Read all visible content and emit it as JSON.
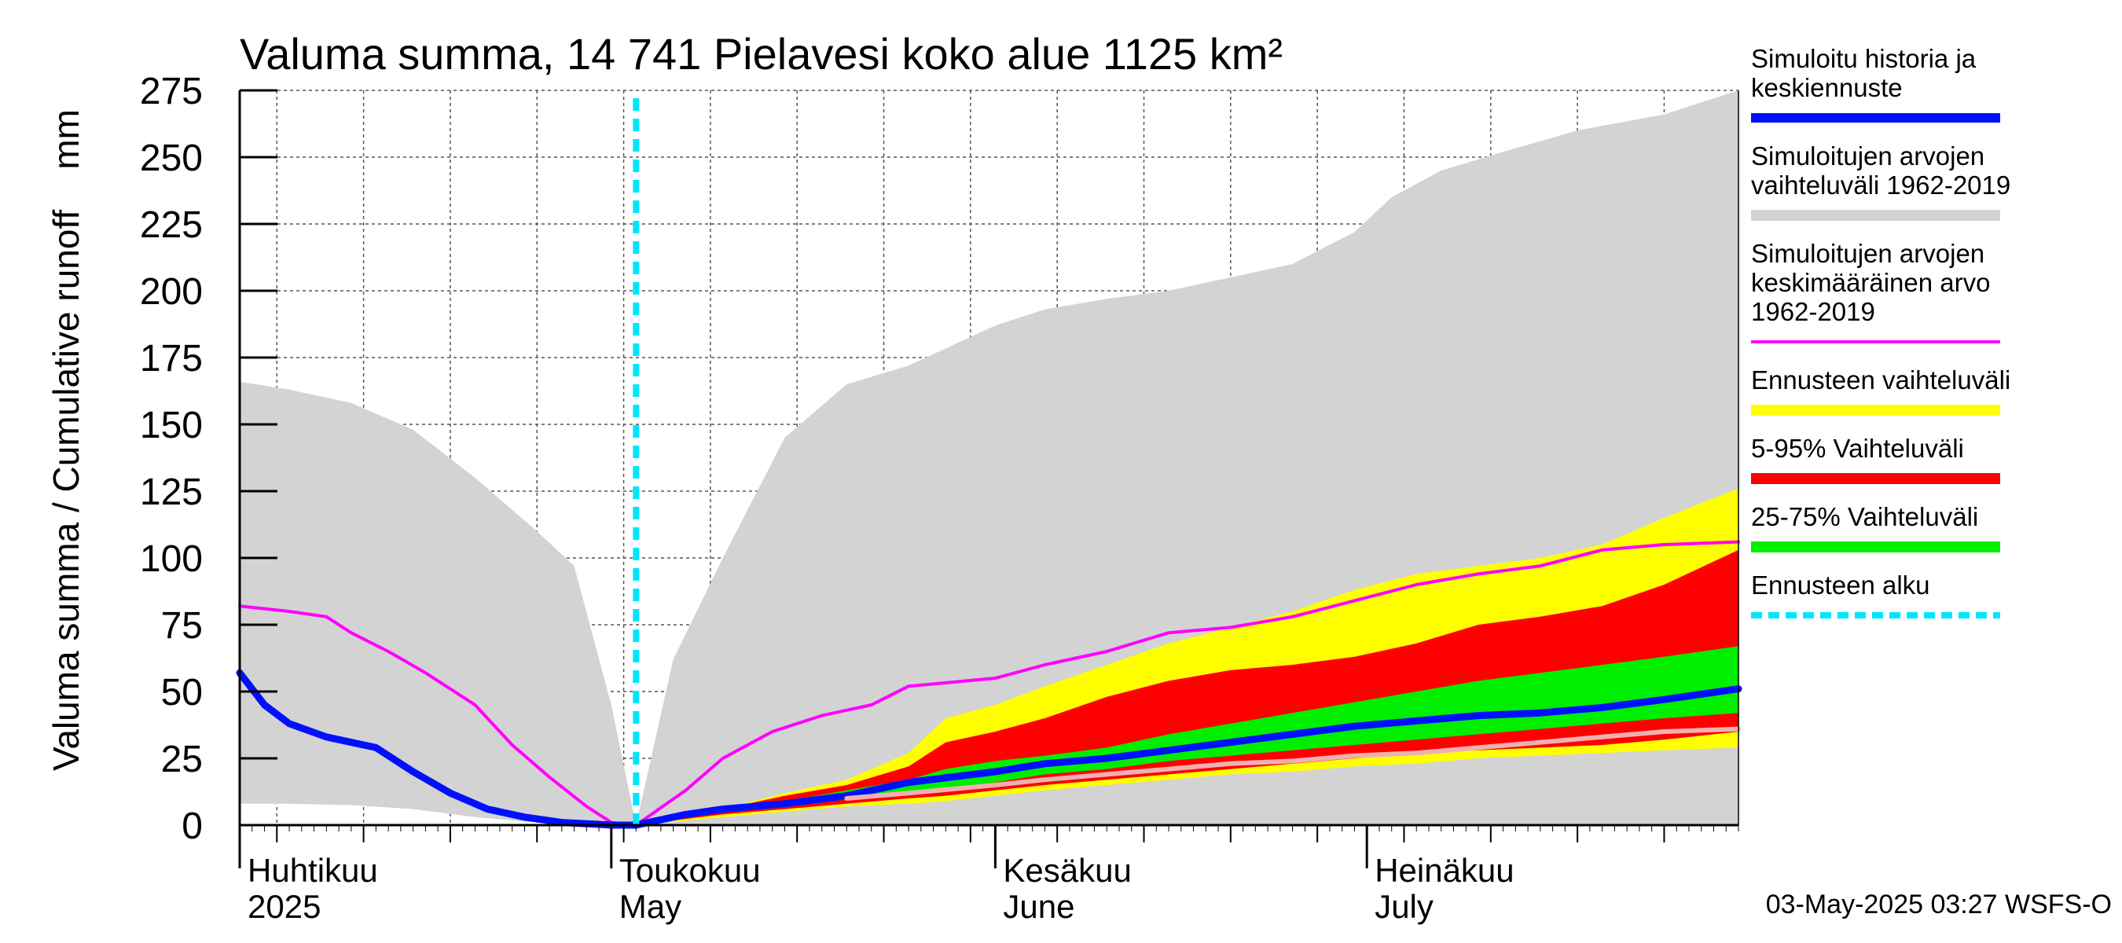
{
  "chart_data": {
    "type": "area",
    "title": "Valuma summa, 14 741 Pielavesi koko alue 1125 km²",
    "ylabel": "Valuma summa / Cumulative runoff    mm",
    "ylim": [
      0,
      275
    ],
    "yticks": [
      0,
      25,
      50,
      75,
      100,
      125,
      150,
      175,
      200,
      225,
      250,
      275
    ],
    "xlim": [
      "2025-04-01",
      "2025-07-31"
    ],
    "grid": true,
    "months": [
      {
        "fi": "Huhtikuu",
        "en": "2025",
        "date": "2025-04-01"
      },
      {
        "fi": "Toukokuu",
        "en": "May",
        "date": "2025-05-01"
      },
      {
        "fi": "Kesäkuu",
        "en": "June",
        "date": "2025-06-01"
      },
      {
        "fi": "Heinäkuu",
        "en": "July",
        "date": "2025-07-01"
      }
    ],
    "forecast_start": "2025-05-03",
    "footer": "03-May-2025 03:27 WSFS-O",
    "legend_position": "right",
    "legend": [
      {
        "label": "Simuloitu historia ja keskiennuste",
        "lines": [
          "Simuloitu historia ja",
          "keskiennuste"
        ],
        "color": "#0010ff",
        "style": "line"
      },
      {
        "label": "Simuloitujen arvojen vaihteluväli 1962-2019",
        "lines": [
          "Simuloitujen arvojen",
          "vaihteluväli 1962-2019"
        ],
        "color": "#d3d3d3",
        "style": "band"
      },
      {
        "label": "Simuloitujen arvojen keskimääräinen arvo 1962-2019",
        "lines": [
          "Simuloitujen arvojen",
          "keskimääräinen arvo",
          "   1962-2019"
        ],
        "color": "#ff00ff",
        "style": "thin"
      },
      {
        "label": "Ennusteen vaihteluväli",
        "lines": [
          "Ennusteen vaihteluväli"
        ],
        "color": "#ffff00",
        "style": "band"
      },
      {
        "label": "5-95% Vaihteluväli",
        "lines": [
          "5-95% Vaihteluväli"
        ],
        "color": "#ff0000",
        "style": "band"
      },
      {
        "label": "25-75% Vaihteluväli",
        "lines": [
          "25-75% Vaihteluväli"
        ],
        "color": "#00ee00",
        "style": "band"
      },
      {
        "label": "Ennusteen alku",
        "lines": [
          "Ennusteen alku"
        ],
        "color": "#00e5ff",
        "style": "dashed"
      }
    ],
    "series": [
      {
        "name": "Simuloitujen arvojen vaihteluväli 1962-2019",
        "kind": "band",
        "color": "#d3d3d3",
        "x": [
          "2025-04-01",
          "2025-04-05",
          "2025-04-10",
          "2025-04-15",
          "2025-04-20",
          "2025-04-25",
          "2025-04-28",
          "2025-05-01",
          "2025-05-03",
          "2025-05-06",
          "2025-05-10",
          "2025-05-15",
          "2025-05-20",
          "2025-05-25",
          "2025-06-01",
          "2025-06-05",
          "2025-06-10",
          "2025-06-15",
          "2025-06-20",
          "2025-06-25",
          "2025-06-30",
          "2025-07-03",
          "2025-07-07",
          "2025-07-12",
          "2025-07-18",
          "2025-07-25",
          "2025-07-31"
        ],
        "low": [
          8,
          8,
          7.5,
          6,
          3,
          1,
          0.5,
          0,
          0,
          0,
          0,
          0,
          0,
          0,
          0,
          0,
          0,
          0,
          0,
          0,
          0,
          0,
          0,
          0,
          0,
          0,
          0
        ],
        "high": [
          166,
          163,
          158,
          148,
          130,
          110,
          97,
          45,
          0,
          62,
          100,
          145,
          165,
          172,
          187,
          193,
          197,
          200,
          205,
          210,
          222,
          235,
          245,
          252,
          260,
          266,
          275
        ]
      },
      {
        "name": "Ennusteen vaihteluväli",
        "kind": "band",
        "color": "#ffff00",
        "x": [
          "2025-05-03",
          "2025-05-10",
          "2025-05-15",
          "2025-05-20",
          "2025-05-25",
          "2025-05-28",
          "2025-06-01",
          "2025-06-05",
          "2025-06-10",
          "2025-06-15",
          "2025-06-20",
          "2025-06-25",
          "2025-06-30",
          "2025-07-05",
          "2025-07-10",
          "2025-07-15",
          "2025-07-20",
          "2025-07-25",
          "2025-07-31"
        ],
        "low": [
          0,
          3,
          5,
          7,
          8,
          9,
          11,
          13,
          15,
          17,
          19,
          20,
          22,
          23,
          25,
          26,
          27,
          28,
          29
        ],
        "high": [
          0,
          6,
          12,
          17,
          27,
          40,
          45,
          52,
          60,
          68,
          74,
          80,
          88,
          94,
          97,
          100,
          105,
          115,
          126
        ]
      },
      {
        "name": "5-95% Vaihteluväli",
        "kind": "band",
        "color": "#ff0000",
        "x": [
          "2025-05-03",
          "2025-05-10",
          "2025-05-15",
          "2025-05-20",
          "2025-05-25",
          "2025-05-28",
          "2025-06-01",
          "2025-06-05",
          "2025-06-10",
          "2025-06-15",
          "2025-06-20",
          "2025-06-25",
          "2025-06-30",
          "2025-07-05",
          "2025-07-10",
          "2025-07-15",
          "2025-07-20",
          "2025-07-25",
          "2025-07-31"
        ],
        "low": [
          0,
          4,
          6,
          8,
          10,
          11,
          13,
          15,
          17,
          19,
          21,
          23,
          25,
          27,
          28,
          29,
          30,
          32,
          35
        ],
        "high": [
          0,
          6,
          11,
          15,
          22,
          31,
          35,
          40,
          48,
          54,
          58,
          60,
          63,
          68,
          75,
          78,
          82,
          90,
          103
        ]
      },
      {
        "name": "25-75% Vaihteluväli",
        "kind": "band",
        "color": "#00ee00",
        "x": [
          "2025-05-03",
          "2025-05-10",
          "2025-05-15",
          "2025-05-20",
          "2025-05-25",
          "2025-05-28",
          "2025-06-01",
          "2025-06-05",
          "2025-06-10",
          "2025-06-15",
          "2025-06-20",
          "2025-06-25",
          "2025-06-30",
          "2025-07-05",
          "2025-07-10",
          "2025-07-15",
          "2025-07-20",
          "2025-07-25",
          "2025-07-31"
        ],
        "low": [
          0,
          5,
          7,
          10,
          12,
          14,
          16,
          19,
          21,
          24,
          26,
          28,
          30,
          32,
          34,
          36,
          38,
          40,
          42
        ],
        "high": [
          0,
          5.5,
          9,
          13,
          17,
          21,
          24,
          26,
          29,
          34,
          38,
          42,
          46,
          50,
          54,
          57,
          60,
          63,
          67
        ]
      },
      {
        "name": "Simuloitujen arvojen keskimääräinen arvo 1962-2019",
        "kind": "line",
        "color": "#ff00ff",
        "x": [
          "2025-04-01",
          "2025-04-05",
          "2025-04-08",
          "2025-04-10",
          "2025-04-13",
          "2025-04-16",
          "2025-04-20",
          "2025-04-23",
          "2025-04-26",
          "2025-04-29",
          "2025-05-01",
          "2025-05-03",
          "2025-05-07",
          "2025-05-10",
          "2025-05-14",
          "2025-05-18",
          "2025-05-22",
          "2025-05-25",
          "2025-06-01",
          "2025-06-05",
          "2025-06-10",
          "2025-06-15",
          "2025-06-20",
          "2025-06-25",
          "2025-06-30",
          "2025-07-05",
          "2025-07-10",
          "2025-07-15",
          "2025-07-20",
          "2025-07-25",
          "2025-07-31"
        ],
        "y": [
          82,
          80,
          78,
          72,
          65,
          57,
          45,
          30,
          18,
          7,
          1,
          0,
          13,
          25,
          35,
          41,
          45,
          52,
          55,
          60,
          65,
          72,
          74,
          78,
          84,
          90,
          94,
          97,
          103,
          105,
          106
        ]
      },
      {
        "name": "Simuloitu historia ja keskiennuste",
        "kind": "line",
        "color": "#0010ff",
        "x": [
          "2025-04-01",
          "2025-04-03",
          "2025-04-05",
          "2025-04-08",
          "2025-04-12",
          "2025-04-15",
          "2025-04-18",
          "2025-04-21",
          "2025-04-24",
          "2025-04-27",
          "2025-04-30",
          "2025-05-01",
          "2025-05-03",
          "2025-05-07",
          "2025-05-10",
          "2025-05-15",
          "2025-05-20",
          "2025-05-25",
          "2025-06-01",
          "2025-06-05",
          "2025-06-10",
          "2025-06-15",
          "2025-06-20",
          "2025-06-25",
          "2025-06-30",
          "2025-07-05",
          "2025-07-10",
          "2025-07-15",
          "2025-07-20",
          "2025-07-25",
          "2025-07-31"
        ],
        "y": [
          57,
          45,
          38,
          33,
          29,
          20,
          12,
          6,
          3,
          1,
          0.3,
          0,
          0,
          4,
          6,
          8,
          11,
          16,
          20,
          23,
          25,
          28,
          31,
          34,
          37,
          39,
          41,
          42,
          44,
          47,
          51
        ]
      },
      {
        "name": "Simuloitujen arvojen mediaani",
        "kind": "line",
        "color": "#f0b0b0",
        "x": [
          "2025-05-20",
          "2025-05-25",
          "2025-06-01",
          "2025-06-05",
          "2025-06-10",
          "2025-06-15",
          "2025-06-20",
          "2025-06-25",
          "2025-06-30",
          "2025-07-05",
          "2025-07-10",
          "2025-07-15",
          "2025-07-20",
          "2025-07-25",
          "2025-07-31"
        ],
        "y": [
          10,
          12,
          15,
          17,
          19,
          21,
          23,
          24,
          26,
          27,
          29,
          31,
          33,
          35,
          36
        ]
      }
    ]
  }
}
